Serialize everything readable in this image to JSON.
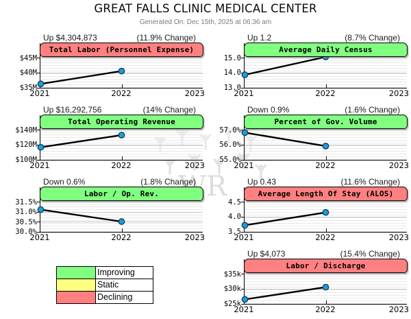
{
  "header": {
    "title": "GREAT FALLS CLINIC MEDICAL CENTER",
    "subtitle": "Generated On: Dec 15th, 2025 at 06:36 am"
  },
  "watermark": {
    "text": "WR"
  },
  "colors": {
    "line": "#000000",
    "point_fill": "#1f9ed6",
    "point_stroke": "#0b3a57",
    "improving": "#80ff80",
    "static": "#ffff80",
    "declining": "#ff8080"
  },
  "legend": {
    "items": [
      {
        "label": "Improving",
        "color": "#80ff80"
      },
      {
        "label": "Static",
        "color": "#ffff80"
      },
      {
        "label": "Declining",
        "color": "#ff8080"
      }
    ]
  },
  "chart_data": [
    {
      "type": "line",
      "title": "Total Labor (Personnel Expense)",
      "status": "declining",
      "header_color": "#ff8080",
      "delta_label": "Up $4,304,873",
      "change_label": "(11.9% Change)",
      "x": [
        2021,
        2022
      ],
      "values": [
        36200000,
        40500000
      ],
      "xticks": [
        "2021",
        "2022",
        "2023"
      ],
      "yticks": [
        {
          "label": "$45M",
          "value": 45000000
        },
        {
          "label": "$40M",
          "value": 40000000
        },
        {
          "label": "$35M",
          "value": 35000000
        }
      ]
    },
    {
      "type": "line",
      "title": "Average Daily Census",
      "status": "improving",
      "header_color": "#80ff80",
      "delta_label": "Up 1.2",
      "change_label": "(8.7% Change)",
      "x": [
        2021,
        2022
      ],
      "values": [
        13.85,
        15.05
      ],
      "xticks": [
        "2021",
        "2022",
        "2023"
      ],
      "yticks": [
        {
          "label": "15.0",
          "value": 15.0
        },
        {
          "label": "14.0",
          "value": 14.0
        },
        {
          "label": "13.0",
          "value": 13.0
        }
      ]
    },
    {
      "type": "line",
      "title": "Total Operating Revenue",
      "status": "improving",
      "header_color": "#80ff80",
      "delta_label": "Up $16,292,756",
      "change_label": "(14% Change)",
      "x": [
        2021,
        2022
      ],
      "values": [
        116400000,
        132700000
      ],
      "xticks": [
        "2021",
        "2022",
        "2023"
      ],
      "yticks": [
        {
          "label": "$140M",
          "value": 140000000
        },
        {
          "label": "$120M",
          "value": 120000000
        },
        {
          "label": "$100M",
          "value": 100000000
        }
      ]
    },
    {
      "type": "line",
      "title": "Percent of Gov. Volume",
      "status": "improving",
      "header_color": "#80ff80",
      "delta_label": "Down 0.9%",
      "change_label": "(1.6% Change)",
      "x": [
        2021,
        2022
      ],
      "values": [
        56.8,
        55.9
      ],
      "xticks": [
        "2021",
        "2022",
        "2023"
      ],
      "yticks": [
        {
          "label": "57.0%",
          "value": 57.0
        },
        {
          "label": "56.0%",
          "value": 56.0
        },
        {
          "label": "55.0%",
          "value": 55.0
        }
      ]
    },
    {
      "type": "line",
      "title": "Labor / Op. Rev.",
      "status": "improving",
      "header_color": "#80ff80",
      "delta_label": "Down 0.6%",
      "change_label": "(1.8% Change)",
      "x": [
        2021,
        2022
      ],
      "values": [
        31.1,
        30.5
      ],
      "xticks": [
        "2021",
        "2022",
        "2023"
      ],
      "yticks": [
        {
          "label": "31.5%",
          "value": 31.5
        },
        {
          "label": "31.0%",
          "value": 31.0
        },
        {
          "label": "30.5%",
          "value": 30.5
        },
        {
          "label": "30.0%",
          "value": 30.0
        }
      ]
    },
    {
      "type": "line",
      "title": "Average Length Of Stay (ALOS)",
      "status": "declining",
      "header_color": "#ff8080",
      "delta_label": "Up 0.43",
      "change_label": "(11.6% Change)",
      "x": [
        2021,
        2022
      ],
      "values": [
        3.71,
        4.14
      ],
      "xticks": [
        "2021",
        "2022",
        "2023"
      ],
      "yticks": [
        {
          "label": "4.5",
          "value": 4.5
        },
        {
          "label": "4.0",
          "value": 4.0
        },
        {
          "label": "3.5",
          "value": 3.5
        }
      ]
    },
    {
      "type": "line",
      "title": "Labor / Discharge",
      "status": "declining",
      "header_color": "#ff8080",
      "delta_label": "Up $4,073",
      "change_label": "(15.4% Change)",
      "x": [
        2021,
        2022
      ],
      "values": [
        26400,
        30500
      ],
      "xticks": [
        "2021",
        "2022",
        "2023"
      ],
      "yticks": [
        {
          "label": "$35k",
          "value": 35000
        },
        {
          "label": "$30k",
          "value": 30000
        },
        {
          "label": "$25k",
          "value": 25000
        }
      ]
    }
  ]
}
